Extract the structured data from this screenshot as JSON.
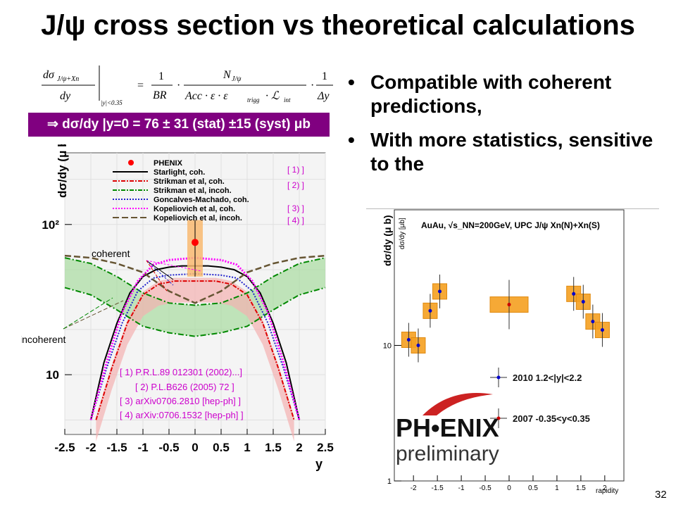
{
  "slide": {
    "title": "J/ψ cross section vs theoretical calculations",
    "bullets": [
      "Compatible with coherent predictions,",
      "With more statistics, sensitive to the"
    ],
    "formula": {
      "lhs_num": "dσ",
      "lhs_sub": "J/ψ+Xn",
      "lhs_den": "dy",
      "eval_sub": "|y|<0.35",
      "eq": "=",
      "f1_num": "1",
      "f1_den": "BR",
      "f2_num": "N",
      "f2_num_sub": "J/ψ",
      "f2_den": "Acc · ε · ε",
      "f2_den_sub": "trigg",
      "f2_den_tail": "· ℒ",
      "f2_den_tail_sub": "int",
      "f3_num": "1",
      "f3_den": "Δy"
    },
    "result": "⇒ dσ/dy |y=0 = 76 ± 31 (stat) ±15 (syst) μb",
    "page_number": "32",
    "colors": {
      "banner": "#800080",
      "pink_refs": "#cc00cc"
    }
  },
  "chart_data": [
    {
      "type": "line",
      "ylabel": "dσ/dy (μ b)",
      "xlabel": "y",
      "xlim": [
        -2.5,
        2.5
      ],
      "ylog": true,
      "ylim": [
        4,
        300
      ],
      "x_ticks": [
        "-2.5",
        "-2",
        "-1.5",
        "-1",
        "-0.5",
        "0",
        "0.5",
        "1",
        "1.5",
        "2",
        "2.5"
      ],
      "y_ticks": [
        {
          "value": 10,
          "label": "10"
        },
        {
          "value": 100,
          "label": "10²"
        }
      ],
      "legend": [
        {
          "label": "PHENIX",
          "color": "#ff0000",
          "style": "marker"
        },
        {
          "label": "Starlight, coh.",
          "color": "#000000",
          "style": "solid"
        },
        {
          "label": "Strikman et al, coh.",
          "color": "#dd0000",
          "style": "dashdot"
        },
        {
          "label": "Strikman et al, incoh.",
          "color": "#008800",
          "style": "dashdot"
        },
        {
          "label": "Goncalves-Machado, coh.",
          "color": "#2222cc",
          "style": "dotted"
        },
        {
          "label": "Kopeliovich et al, coh.",
          "color": "#ff00ff",
          "style": "dotted"
        },
        {
          "label": "Kopeliovich et al, incoh.",
          "color": "#665533",
          "style": "dashed"
        }
      ],
      "ref_tags": [
        "[ 1) ]",
        "[ 2) ]",
        "[ 3) ]",
        "[ 4) ]"
      ],
      "references": [
        "[ 1) P.R.L.89 012301 (2002)...]",
        "[ 2) P.L.B626 (2005) 72 ]",
        "[ 3) arXiv0706.2810 [hep-ph] ]",
        "[ 4) arXiv:0706.1532 [hep-ph] ]"
      ],
      "annotations": [
        "coherent",
        "incoherent"
      ],
      "phenix_point": {
        "x": 0,
        "y": 76,
        "stat_low": 45,
        "stat_high": 107
      },
      "curves": {
        "starlight": {
          "x": [
            -2.0,
            -1.75,
            -1.5,
            -1.25,
            -1.0,
            -0.75,
            -0.5,
            -0.25,
            0,
            0.25,
            0.5,
            0.75,
            1.0,
            1.25,
            1.5,
            1.75,
            2.0
          ],
          "y": [
            5,
            12,
            22,
            35,
            45,
            50,
            52,
            53,
            53,
            53,
            52,
            50,
            45,
            35,
            22,
            12,
            5
          ]
        },
        "strikman_coh": {
          "x": [
            -1.9,
            -1.6,
            -1.3,
            -1.0,
            -0.7,
            -0.4,
            0,
            0.4,
            0.7,
            1.0,
            1.3,
            1.6,
            1.9
          ],
          "y": [
            5,
            11,
            22,
            34,
            40,
            42,
            42,
            42,
            40,
            34,
            22,
            11,
            5
          ]
        },
        "strikman_incoh_upper": {
          "x": [
            -2.5,
            -2.0,
            -1.5,
            -1.0,
            -0.5,
            0,
            0.5,
            1.0,
            1.5,
            2.0,
            2.5
          ],
          "y": [
            60,
            55,
            45,
            35,
            30,
            29,
            30,
            35,
            45,
            55,
            60
          ]
        },
        "strikman_incoh_lower": {
          "x": [
            -2.5,
            -2.0,
            -1.5,
            -1.0,
            -0.5,
            0,
            0.5,
            1.0,
            1.5,
            2.0,
            2.5
          ],
          "y": [
            38,
            34,
            27,
            21,
            19,
            18,
            19,
            21,
            27,
            34,
            38
          ]
        },
        "goncalves_coh": {
          "x": [
            -2.0,
            -1.7,
            -1.4,
            -1.1,
            -0.8,
            -0.5,
            0,
            0.5,
            0.8,
            1.1,
            1.4,
            1.7,
            2.0
          ],
          "y": [
            5,
            11,
            22,
            36,
            44,
            46,
            47,
            46,
            44,
            36,
            22,
            11,
            5
          ]
        },
        "kopeliovich_coh": {
          "x": [
            -2.0,
            -1.7,
            -1.4,
            -1.1,
            -0.8,
            -0.5,
            0,
            0.5,
            0.8,
            1.1,
            1.4,
            1.7,
            2.0
          ],
          "y": [
            5,
            12,
            26,
            42,
            54,
            58,
            60,
            58,
            54,
            42,
            26,
            12,
            5
          ]
        },
        "kopeliovich_incoh": {
          "x": [
            -2.5,
            -2.0,
            -1.5,
            -1.0,
            -0.5,
            0,
            0.5,
            1.0,
            1.5,
            2.0,
            2.5
          ],
          "y": [
            62,
            60,
            55,
            48,
            36,
            30,
            36,
            48,
            55,
            60,
            62
          ]
        }
      }
    },
    {
      "type": "scatter",
      "ylabel": "dσ/dy (μ b)",
      "ylabel_inner": "dσ/dy [μb]",
      "xlabel": "rapidity",
      "title": "AuAu, √s_NN=200GeV, UPC J/ψ Xn(N)+Xn(S)",
      "xlim": [
        -2.4,
        2.4
      ],
      "ylog": true,
      "ylim": [
        1,
        100
      ],
      "x_ticks": [
        "-2",
        "-1.5",
        "-1",
        "-0.5",
        "0",
        "0.5",
        "1",
        "1.5",
        "2"
      ],
      "y_ticks": [
        {
          "value": 1,
          "label": "1"
        },
        {
          "value": 10,
          "label": "10"
        }
      ],
      "series": [
        {
          "name": "2010 1.2<|y|<2.2",
          "color": "#0000cc",
          "x": [
            -2.1,
            -1.9,
            -1.65,
            -1.45,
            1.35,
            1.55,
            1.75,
            1.95
          ],
          "y": [
            11,
            10,
            18,
            25,
            24,
            21,
            15,
            13
          ]
        },
        {
          "name": "2007 -0.35<y<0.35",
          "color": "#cc0000",
          "x": [
            0
          ],
          "y": [
            20
          ]
        }
      ],
      "logo": [
        "PH•ENIX",
        "preliminary"
      ]
    }
  ]
}
